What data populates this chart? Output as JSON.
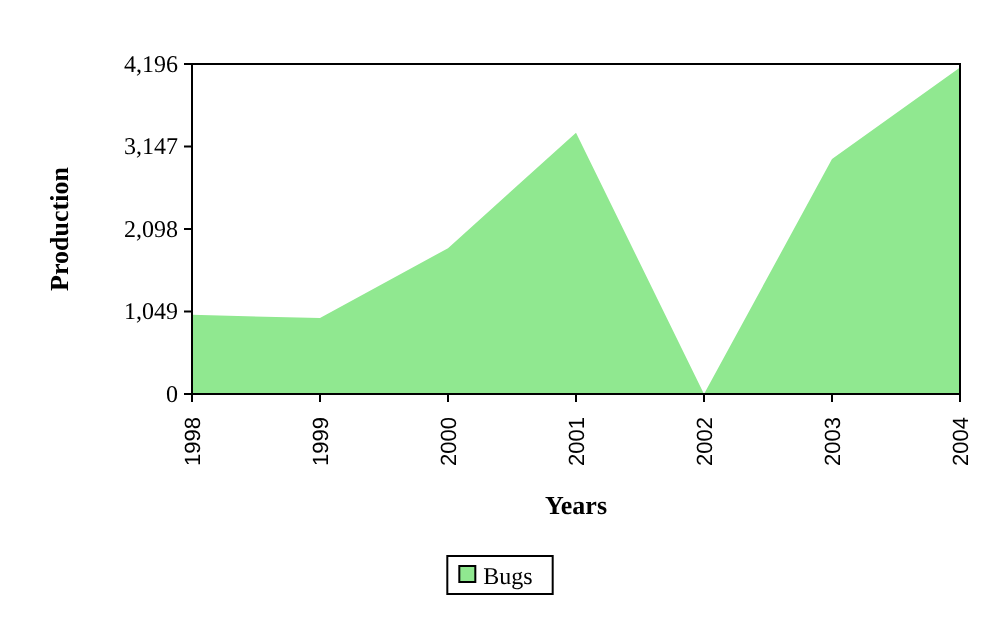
{
  "chart_data": {
    "type": "area",
    "xlabel": "Years",
    "ylabel": "Production",
    "x": [
      1998,
      1999,
      2000,
      2001,
      2002,
      2003,
      2004
    ],
    "xlim": [
      1998,
      2004
    ],
    "xticks": [
      1998,
      1999,
      2000,
      2001,
      2002,
      2003,
      2004
    ],
    "ylim": [
      0,
      4196
    ],
    "yticks": [
      0,
      {
        "value": 1049,
        "label": "1,049"
      },
      {
        "value": 2098,
        "label": "2,098"
      },
      {
        "value": 3147,
        "label": "3,147"
      },
      {
        "value": 4196,
        "label": "4,196"
      }
    ],
    "series": [
      {
        "name": "Bugs",
        "color": "#90e890",
        "values": [
          1007,
          965,
          1854,
          3323,
          0,
          2987,
          4153
        ]
      }
    ],
    "legend": "bottom",
    "grid": false
  }
}
